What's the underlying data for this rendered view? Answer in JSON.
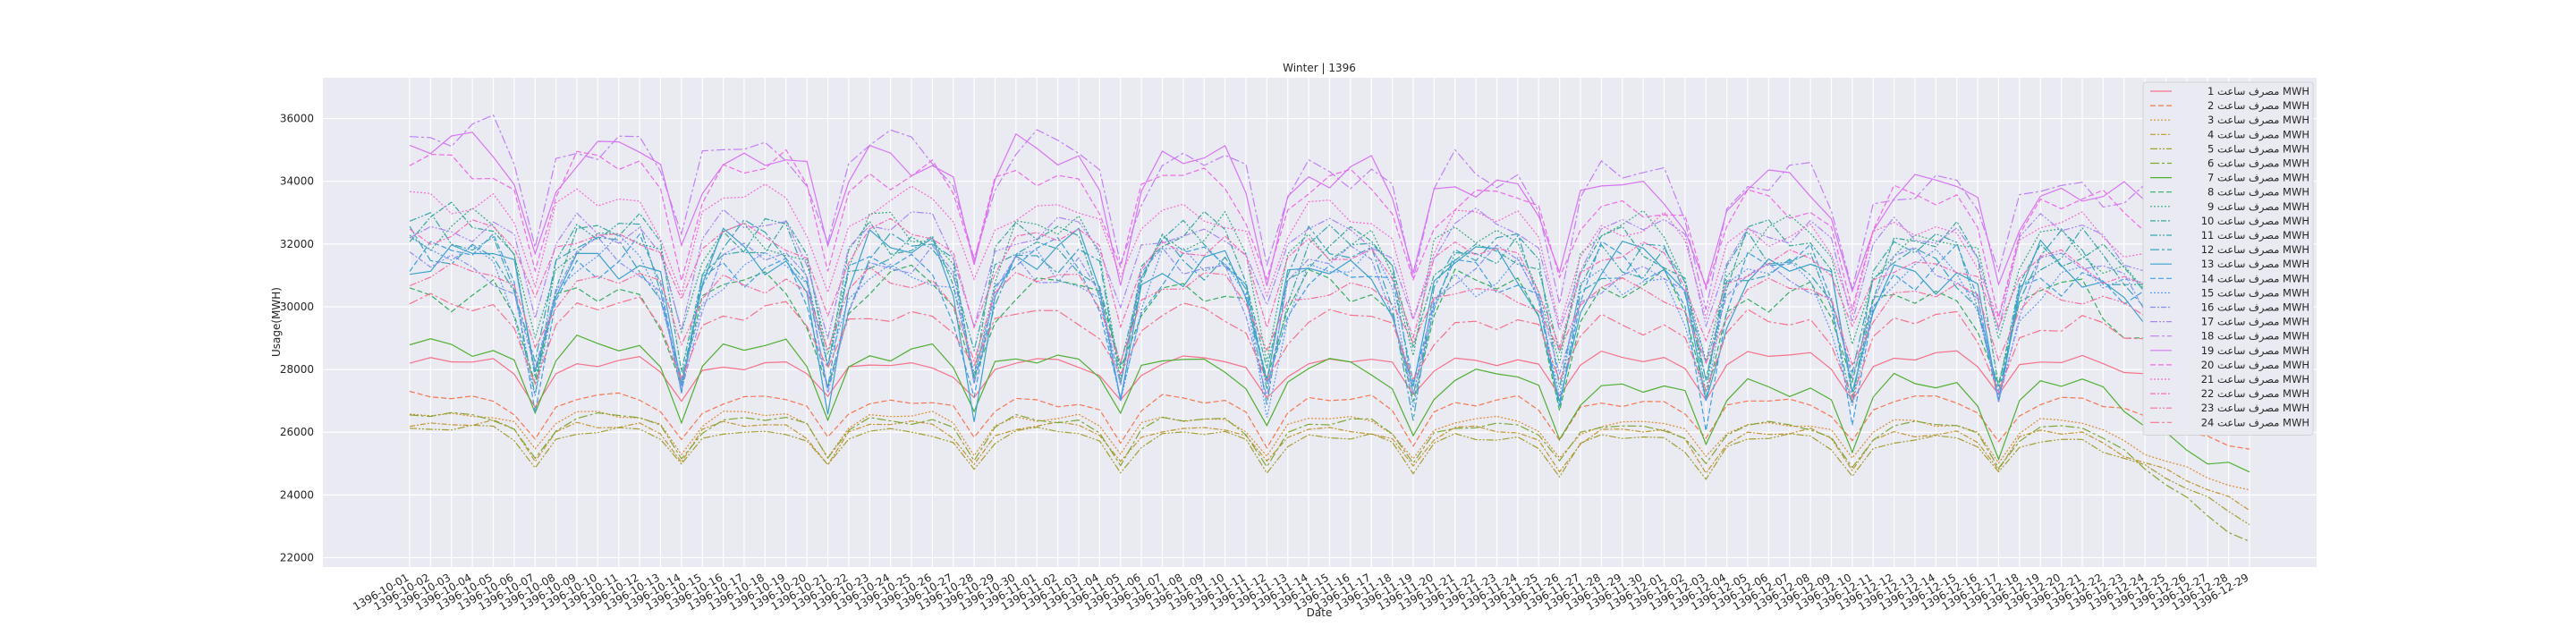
{
  "chart_data": {
    "type": "line",
    "title": "Winter | 1396",
    "xlabel": "Date",
    "ylabel": "Usage(MWH)",
    "ylim": [
      21700,
      37300
    ],
    "yticks": [
      22000,
      24000,
      26000,
      28000,
      30000,
      32000,
      34000,
      36000
    ],
    "grid": true,
    "legend_position": "top-right",
    "dates": [
      "1396-10-01",
      "1396-10-02",
      "1396-10-03",
      "1396-10-04",
      "1396-10-05",
      "1396-10-06",
      "1396-10-07",
      "1396-10-08",
      "1396-10-09",
      "1396-10-10",
      "1396-10-11",
      "1396-10-12",
      "1396-10-13",
      "1396-10-14",
      "1396-10-15",
      "1396-10-16",
      "1396-10-17",
      "1396-10-18",
      "1396-10-19",
      "1396-10-20",
      "1396-10-21",
      "1396-10-22",
      "1396-10-23",
      "1396-10-24",
      "1396-10-25",
      "1396-10-26",
      "1396-10-27",
      "1396-10-28",
      "1396-10-29",
      "1396-10-30",
      "1396-11-01",
      "1396-11-02",
      "1396-11-03",
      "1396-11-04",
      "1396-11-05",
      "1396-11-06",
      "1396-11-07",
      "1396-11-08",
      "1396-11-09",
      "1396-11-10",
      "1396-11-11",
      "1396-11-12",
      "1396-11-13",
      "1396-11-14",
      "1396-11-15",
      "1396-11-16",
      "1396-11-17",
      "1396-11-18",
      "1396-11-19",
      "1396-11-20",
      "1396-11-21",
      "1396-11-22",
      "1396-11-23",
      "1396-11-24",
      "1396-11-25",
      "1396-11-26",
      "1396-11-27",
      "1396-11-28",
      "1396-11-29",
      "1396-11-30",
      "1396-12-01",
      "1396-12-02",
      "1396-12-03",
      "1396-12-04",
      "1396-12-05",
      "1396-12-06",
      "1396-12-07",
      "1396-12-08",
      "1396-12-09",
      "1396-12-10",
      "1396-12-11",
      "1396-12-12",
      "1396-12-13",
      "1396-12-14",
      "1396-12-15",
      "1396-12-16",
      "1396-12-17",
      "1396-12-18",
      "1396-12-19",
      "1396-12-20",
      "1396-12-21",
      "1396-12-22",
      "1396-12-23",
      "1396-12-24",
      "1396-12-25",
      "1396-12-26",
      "1396-12-27",
      "1396-12-28",
      "1396-12-29"
    ],
    "x_tick_labels": [
      "1396-10-01",
      "1396-10-02",
      "1396-10-03",
      "1396-10-04",
      "1396-10-05",
      "1396-10-06",
      "1396-10-07",
      "1396-10-08",
      "1396-10-09",
      "1396-10-10",
      "1396-10-11",
      "1396-10-12",
      "1396-10-13",
      "1396-10-14",
      "1396-10-15",
      "1396-10-16",
      "1396-10-17",
      "1396-10-18",
      "1396-10-19",
      "1396-10-20",
      "1396-10-21",
      "1396-10-22",
      "1396-10-23",
      "1396-10-24",
      "1396-10-25",
      "1396-10-26",
      "1396-10-27",
      "1396-10-28",
      "1396-10-29",
      "1396-10-30",
      "1396-11-01",
      "1396-11-02",
      "1396-11-03",
      "1396-11-04",
      "1396-11-05",
      "1396-11-06",
      "1396-11-07",
      "1396-11-08",
      "1396-11-09",
      "1396-11-10",
      "1396-11-11",
      "1396-11-12",
      "1396-11-13",
      "1396-11-14",
      "1396-11-15",
      "1396-11-16",
      "1396-11-17",
      "1396-11-18",
      "1396-11-19",
      "1396-11-20",
      "1396-11-21",
      "1396-11-22",
      "1396-11-23",
      "1396-11-24",
      "1396-11-25",
      "1396-11-26",
      "1396-11-27",
      "1396-11-28",
      "1396-11-29",
      "1396-11-30",
      "1396-12-01",
      "1396-12-02",
      "1396-12-03",
      "1396-12-04",
      "1396-12-05",
      "1396-12-06",
      "1396-12-07",
      "1396-12-08",
      "1396-12-09",
      "1396-12-10",
      "1396-12-11",
      "1396-12-12",
      "1396-12-13",
      "1396-12-14",
      "1396-12-15",
      "1396-12-16",
      "1396-12-17",
      "1396-12-18",
      "1396-12-19",
      "1396-12-20",
      "1396-12-21",
      "1396-12-22",
      "1396-12-23",
      "1396-12-24",
      "1396-12-25",
      "1396-12-26",
      "1396-12-27",
      "1396-12-28",
      "1396-12-29"
    ],
    "series": [
      {
        "name": "مصرف ساعت 1 MWH",
        "color": "#f77189",
        "dash": "",
        "peak": 28200,
        "amp": 1200,
        "mid": 28200,
        "late": 28400,
        "end": 26500,
        "wiggle": 0.35
      },
      {
        "name": "مصرف ساعت 2 MWH",
        "color": "#f7754f",
        "dash": "6,3",
        "peak": 27100,
        "amp": 1300,
        "mid": 27000,
        "late": 27000,
        "end": 25500,
        "wiggle": 0.3
      },
      {
        "name": "مصرف ساعت 3 MWH",
        "color": "#dd8a31",
        "dash": "2,2",
        "peak": 26600,
        "amp": 1200,
        "mid": 26500,
        "late": 26300,
        "end": 24000,
        "wiggle": 0.25
      },
      {
        "name": "مصرف ساعت 4 MWH",
        "color": "#c39532",
        "dash": "6,2,2,2",
        "peak": 26300,
        "amp": 1200,
        "mid": 26200,
        "late": 26000,
        "end": 23500,
        "wiggle": 0.25
      },
      {
        "name": "مصرف ساعت 5 MWH",
        "color": "#a59e32",
        "dash": "8,2,2,2,2,2",
        "peak": 26100,
        "amp": 1200,
        "mid": 26000,
        "late": 25800,
        "end": 23200,
        "wiggle": 0.25
      },
      {
        "name": "مصرف ساعت 6 MWH",
        "color": "#80a732",
        "dash": "10,3,3,3",
        "peak": 26500,
        "amp": 1300,
        "mid": 26400,
        "late": 26200,
        "end": 22500,
        "wiggle": 0.25
      },
      {
        "name": "مصرف ساعت 7 MWH",
        "color": "#4fb031",
        "dash": "",
        "peak": 28800,
        "amp": 2000,
        "mid": 28500,
        "late": 27500,
        "end": 24500,
        "wiggle": 0.35
      },
      {
        "name": "مصرف ساعت 8 MWH",
        "color": "#34ae5f",
        "dash": "6,3",
        "peak": 30500,
        "amp": 3200,
        "mid": 30800,
        "late": 30500,
        "end": 26500,
        "wiggle": 0.4
      },
      {
        "name": "مصرف ساعت 9 MWH",
        "color": "#36ab80",
        "dash": "2,2",
        "peak": 32500,
        "amp": 4000,
        "mid": 32300,
        "late": 32300,
        "end": 27500,
        "wiggle": 0.4
      },
      {
        "name": "مصرف ساعت 10 MWH",
        "color": "#37a898",
        "dash": "6,2,2,2",
        "peak": 32500,
        "amp": 4200,
        "mid": 32200,
        "late": 32000,
        "end": 27800,
        "wiggle": 0.4
      },
      {
        "name": "مصرف ساعت 11 MWH",
        "color": "#38a6a9",
        "dash": "8,2,2,2,2,2",
        "peak": 32200,
        "amp": 4300,
        "mid": 32000,
        "late": 31700,
        "end": 28000,
        "wiggle": 0.4
      },
      {
        "name": "مصرف ساعت 12 MWH",
        "color": "#39a4b9",
        "dash": "10,3,3,3",
        "peak": 32000,
        "amp": 4400,
        "mid": 31800,
        "late": 31500,
        "end": 28000,
        "wiggle": 0.4
      },
      {
        "name": "مصرف ساعت 13 MWH",
        "color": "#3ba2cb",
        "dash": "",
        "peak": 31800,
        "amp": 4400,
        "mid": 31600,
        "late": 31300,
        "end": 28200,
        "wiggle": 0.4
      },
      {
        "name": "مصرف ساعت 14 MWH",
        "color": "#3e9ee0",
        "dash": "6,3",
        "peak": 31600,
        "amp": 4300,
        "mid": 31400,
        "late": 31200,
        "end": 28200,
        "wiggle": 0.4
      },
      {
        "name": "مصرف ساعت 15 MWH",
        "color": "#5e98f5",
        "dash": "2,2",
        "peak": 31500,
        "amp": 4000,
        "mid": 31300,
        "late": 31000,
        "end": 28500,
        "wiggle": 0.4
      },
      {
        "name": "مصرف ساعت 16 MWH",
        "color": "#8a8ff5",
        "dash": "6,2,2,2",
        "peak": 31500,
        "amp": 3800,
        "mid": 31400,
        "late": 31200,
        "end": 29000,
        "wiggle": 0.4
      },
      {
        "name": "مصرف ساعت 17 MWH",
        "color": "#a887f5",
        "dash": "8,2,2,2,2,2",
        "peak": 32600,
        "amp": 3000,
        "mid": 32500,
        "late": 32500,
        "end": 30000,
        "wiggle": 0.4
      },
      {
        "name": "مصرف ساعت 18 MWH",
        "color": "#c27ff5",
        "dash": "10,3,3,3",
        "peak": 35500,
        "amp": 3500,
        "mid": 35000,
        "late": 34000,
        "end": 32500,
        "wiggle": 0.4
      },
      {
        "name": "مصرف ساعت 19 MWH",
        "color": "#d874f5",
        "dash": "",
        "peak": 35000,
        "amp": 3300,
        "mid": 34800,
        "late": 33800,
        "end": 32000,
        "wiggle": 0.4
      },
      {
        "name": "مصرف ساعت 20 MWH",
        "color": "#ef6ae8",
        "dash": "6,3",
        "peak": 34500,
        "amp": 3000,
        "mid": 34300,
        "late": 33300,
        "end": 31500,
        "wiggle": 0.4
      },
      {
        "name": "مصرف ساعت 21 MWH",
        "color": "#f66bce",
        "dash": "2,2",
        "peak": 33500,
        "amp": 2800,
        "mid": 33300,
        "late": 32500,
        "end": 30500,
        "wiggle": 0.4
      },
      {
        "name": "مصرف ساعت 22 MWH",
        "color": "#f56eb7",
        "dash": "6,2,2,2",
        "peak": 32500,
        "amp": 2600,
        "mid": 32200,
        "late": 31500,
        "end": 29500,
        "wiggle": 0.4
      },
      {
        "name": "مصرف ساعت 23 MWH",
        "color": "#f6709f",
        "dash": "8,2,2,2,2,2",
        "peak": 31000,
        "amp": 2200,
        "mid": 30800,
        "late": 30500,
        "end": 28500,
        "wiggle": 0.4
      },
      {
        "name": "مصرف ساعت 24 MWH",
        "color": "#f7718b",
        "dash": "10,3,3,3",
        "peak": 30000,
        "amp": 2000,
        "mid": 29800,
        "late": 29500,
        "end": 27500,
        "wiggle": 0.4
      }
    ]
  }
}
